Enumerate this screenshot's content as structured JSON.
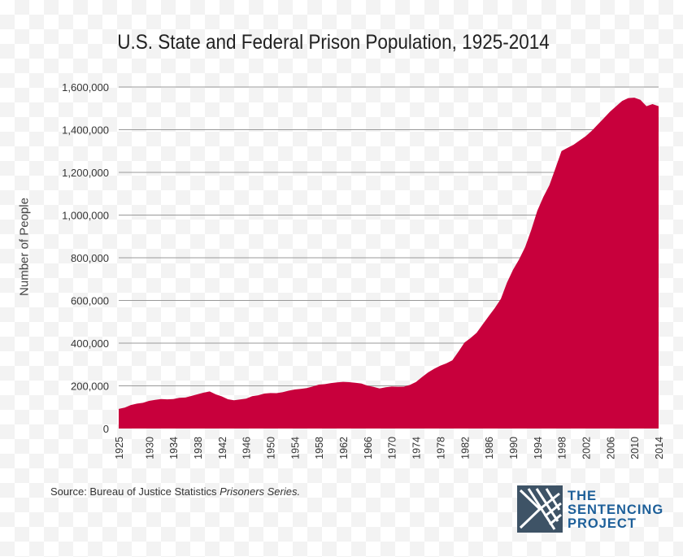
{
  "chart_data": {
    "type": "area",
    "title": "U.S. State and Federal Prison Population, 1925-2014",
    "ylabel": "Number of People",
    "xlabel": "",
    "xlim": [
      1925,
      2014
    ],
    "ylim": [
      0,
      1600000
    ],
    "grid": true,
    "color": "#c8003c",
    "y_ticks": [
      "0",
      "200,000",
      "400,000",
      "600,000",
      "800,000",
      "1,000,000",
      "1,200,000",
      "1,400,000",
      "1,600,000"
    ],
    "y_tick_values": [
      0,
      200000,
      400000,
      600000,
      800000,
      1000000,
      1200000,
      1400000,
      1600000
    ],
    "x_ticks": [
      "1925",
      "1930",
      "1934",
      "1938",
      "1942",
      "1946",
      "1950",
      "1954",
      "1958",
      "1962",
      "1966",
      "1970",
      "1974",
      "1978",
      "1982",
      "1986",
      "1990",
      "1994",
      "1998",
      "2002",
      "2006",
      "2010",
      "2014"
    ],
    "x": [
      1925,
      1926,
      1927,
      1928,
      1929,
      1930,
      1931,
      1932,
      1933,
      1934,
      1935,
      1936,
      1937,
      1938,
      1939,
      1940,
      1941,
      1942,
      1943,
      1944,
      1945,
      1946,
      1947,
      1948,
      1949,
      1950,
      1951,
      1952,
      1953,
      1954,
      1955,
      1956,
      1957,
      1958,
      1959,
      1960,
      1961,
      1962,
      1963,
      1964,
      1965,
      1966,
      1967,
      1968,
      1969,
      1970,
      1971,
      1972,
      1973,
      1974,
      1975,
      1976,
      1977,
      1978,
      1979,
      1980,
      1981,
      1982,
      1983,
      1984,
      1985,
      1986,
      1987,
      1988,
      1989,
      1990,
      1991,
      1992,
      1993,
      1994,
      1995,
      1996,
      1997,
      1998,
      1999,
      2000,
      2001,
      2002,
      2003,
      2004,
      2005,
      2006,
      2007,
      2008,
      2009,
      2010,
      2011,
      2012,
      2013,
      2014
    ],
    "values": [
      91669,
      97991,
      109983,
      116390,
      120496,
      129453,
      134000,
      137997,
      136810,
      138316,
      144180,
      145038,
      152741,
      160285,
      168000,
      173706,
      160000,
      150384,
      137220,
      132456,
      136000,
      140079,
      151304,
      155977,
      163749,
      166123,
      165680,
      170000,
      177000,
      182901,
      185780,
      189565,
      197000,
      205643,
      208105,
      212953,
      216000,
      218830,
      217283,
      214336,
      210895,
      201000,
      194896,
      187914,
      193000,
      196429,
      196000,
      196092,
      204211,
      218466,
      240593,
      262833,
      280000,
      294396,
      305000,
      319598,
      360029,
      402914,
      423898,
      448264,
      487593,
      526436,
      565000,
      607766,
      683367,
      743382,
      792535,
      850566,
      929381,
      1020000,
      1085000,
      1140000,
      1220000,
      1300000,
      1315000,
      1330000,
      1350000,
      1370000,
      1395000,
      1425000,
      1455000,
      1485000,
      1510000,
      1535000,
      1548000,
      1550000,
      1540000,
      1510000,
      1520000,
      1510000
    ]
  },
  "source": {
    "prefix": "Source: Bureau of Justice Statistics ",
    "italic": "Prisoners Series."
  },
  "logo": {
    "line1": "THE",
    "line2": "SENTENCING",
    "line3": "PROJECT",
    "color": "#1d5f99",
    "mark_color": "#3e5366"
  }
}
